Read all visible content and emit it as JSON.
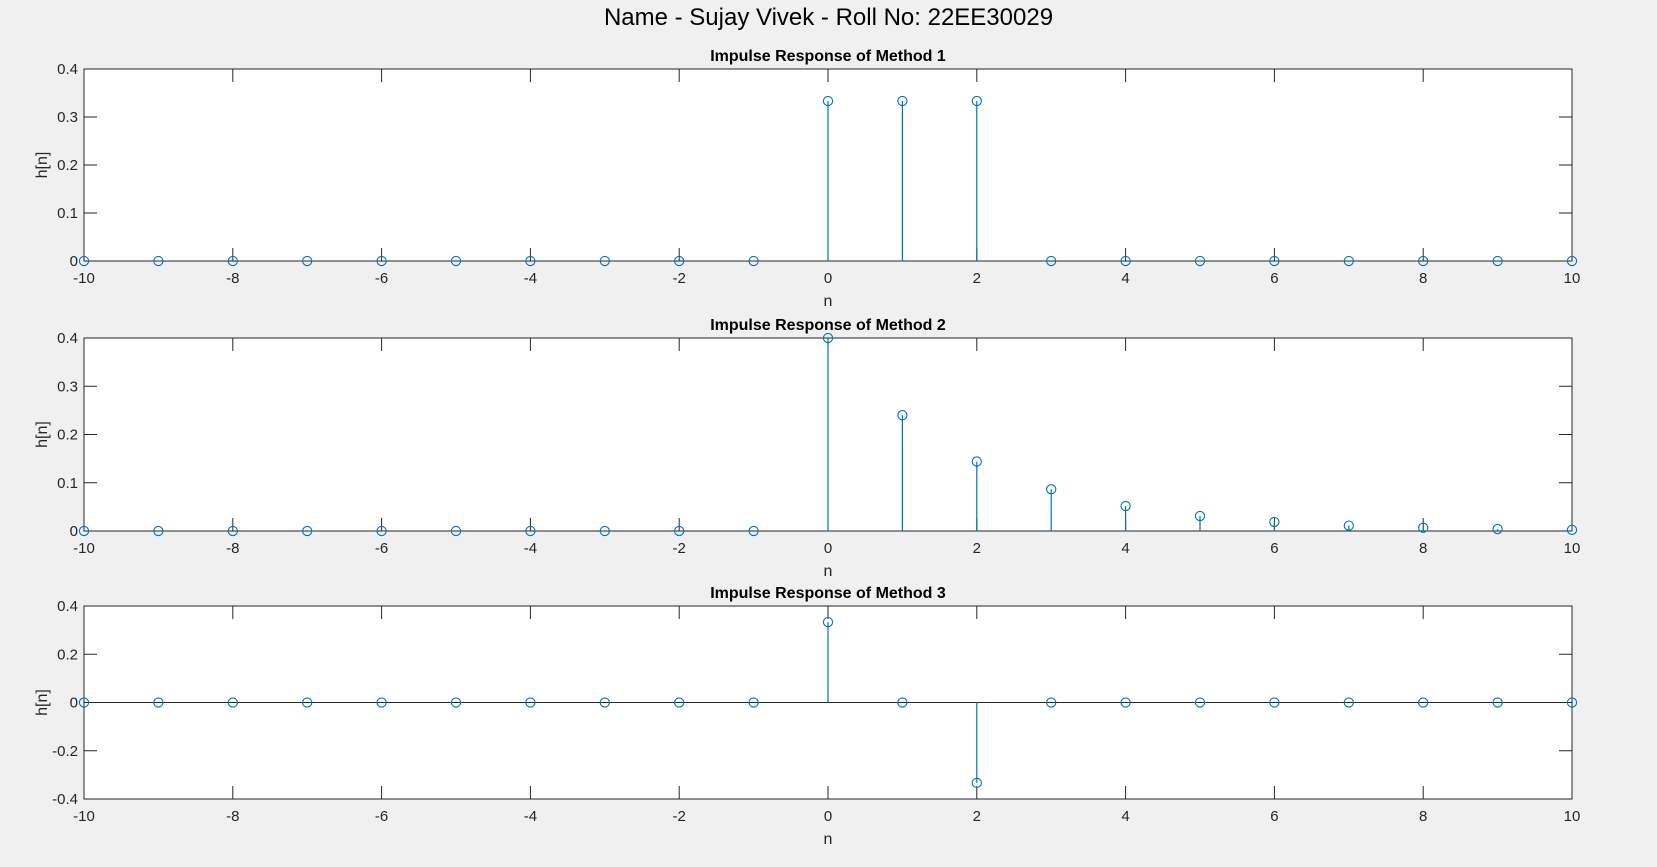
{
  "figure": {
    "suptitle": "Name - Sujay Vivek - Roll No: 22EE30029"
  },
  "colors": {
    "stem": "#0072bd",
    "axes_bg": "#ffffff",
    "figure_bg": "#f0f0f0",
    "axis_line": "#262626"
  },
  "chart_data": [
    {
      "type": "stem",
      "title": "Impulse Response of Method 1",
      "xlabel": "n",
      "ylabel": "h[n]",
      "xlim": [
        -10,
        10
      ],
      "ylim": [
        0,
        0.4
      ],
      "xticks": [
        -10,
        -8,
        -6,
        -4,
        -2,
        0,
        2,
        4,
        6,
        8,
        10
      ],
      "yticks": [
        0,
        0.1,
        0.2,
        0.3,
        0.4
      ],
      "grid": false,
      "x": [
        -10,
        -9,
        -8,
        -7,
        -6,
        -5,
        -4,
        -3,
        -2,
        -1,
        0,
        1,
        2,
        3,
        4,
        5,
        6,
        7,
        8,
        9,
        10
      ],
      "y": [
        0,
        0,
        0,
        0,
        0,
        0,
        0,
        0,
        0,
        0,
        0.3333,
        0.3333,
        0.3333,
        0,
        0,
        0,
        0,
        0,
        0,
        0,
        0
      ]
    },
    {
      "type": "stem",
      "title": "Impulse Response of Method 2",
      "xlabel": "n",
      "ylabel": "h[n]",
      "xlim": [
        -10,
        10
      ],
      "ylim": [
        0,
        0.4
      ],
      "xticks": [
        -10,
        -8,
        -6,
        -4,
        -2,
        0,
        2,
        4,
        6,
        8,
        10
      ],
      "yticks": [
        0,
        0.1,
        0.2,
        0.3,
        0.4
      ],
      "grid": false,
      "x": [
        -10,
        -9,
        -8,
        -7,
        -6,
        -5,
        -4,
        -3,
        -2,
        -1,
        0,
        1,
        2,
        3,
        4,
        5,
        6,
        7,
        8,
        9,
        10
      ],
      "y": [
        0,
        0,
        0,
        0,
        0,
        0,
        0,
        0,
        0,
        0,
        0.4,
        0.24,
        0.144,
        0.0864,
        0.0518,
        0.0311,
        0.0187,
        0.0112,
        0.0067,
        0.004,
        0.0024
      ]
    },
    {
      "type": "stem",
      "title": "Impulse Response of Method 3",
      "xlabel": "n",
      "ylabel": "h[n]",
      "xlim": [
        -10,
        10
      ],
      "ylim": [
        -0.4,
        0.4
      ],
      "xticks": [
        -10,
        -8,
        -6,
        -4,
        -2,
        0,
        2,
        4,
        6,
        8,
        10
      ],
      "yticks": [
        -0.4,
        -0.2,
        0,
        0.2,
        0.4
      ],
      "grid": false,
      "x": [
        -10,
        -9,
        -8,
        -7,
        -6,
        -5,
        -4,
        -3,
        -2,
        -1,
        0,
        1,
        2,
        3,
        4,
        5,
        6,
        7,
        8,
        9,
        10
      ],
      "y": [
        0,
        0,
        0,
        0,
        0,
        0,
        0,
        0,
        0,
        0,
        0.3333,
        0,
        -0.3333,
        0,
        0,
        0,
        0,
        0,
        0,
        0,
        0
      ]
    }
  ]
}
